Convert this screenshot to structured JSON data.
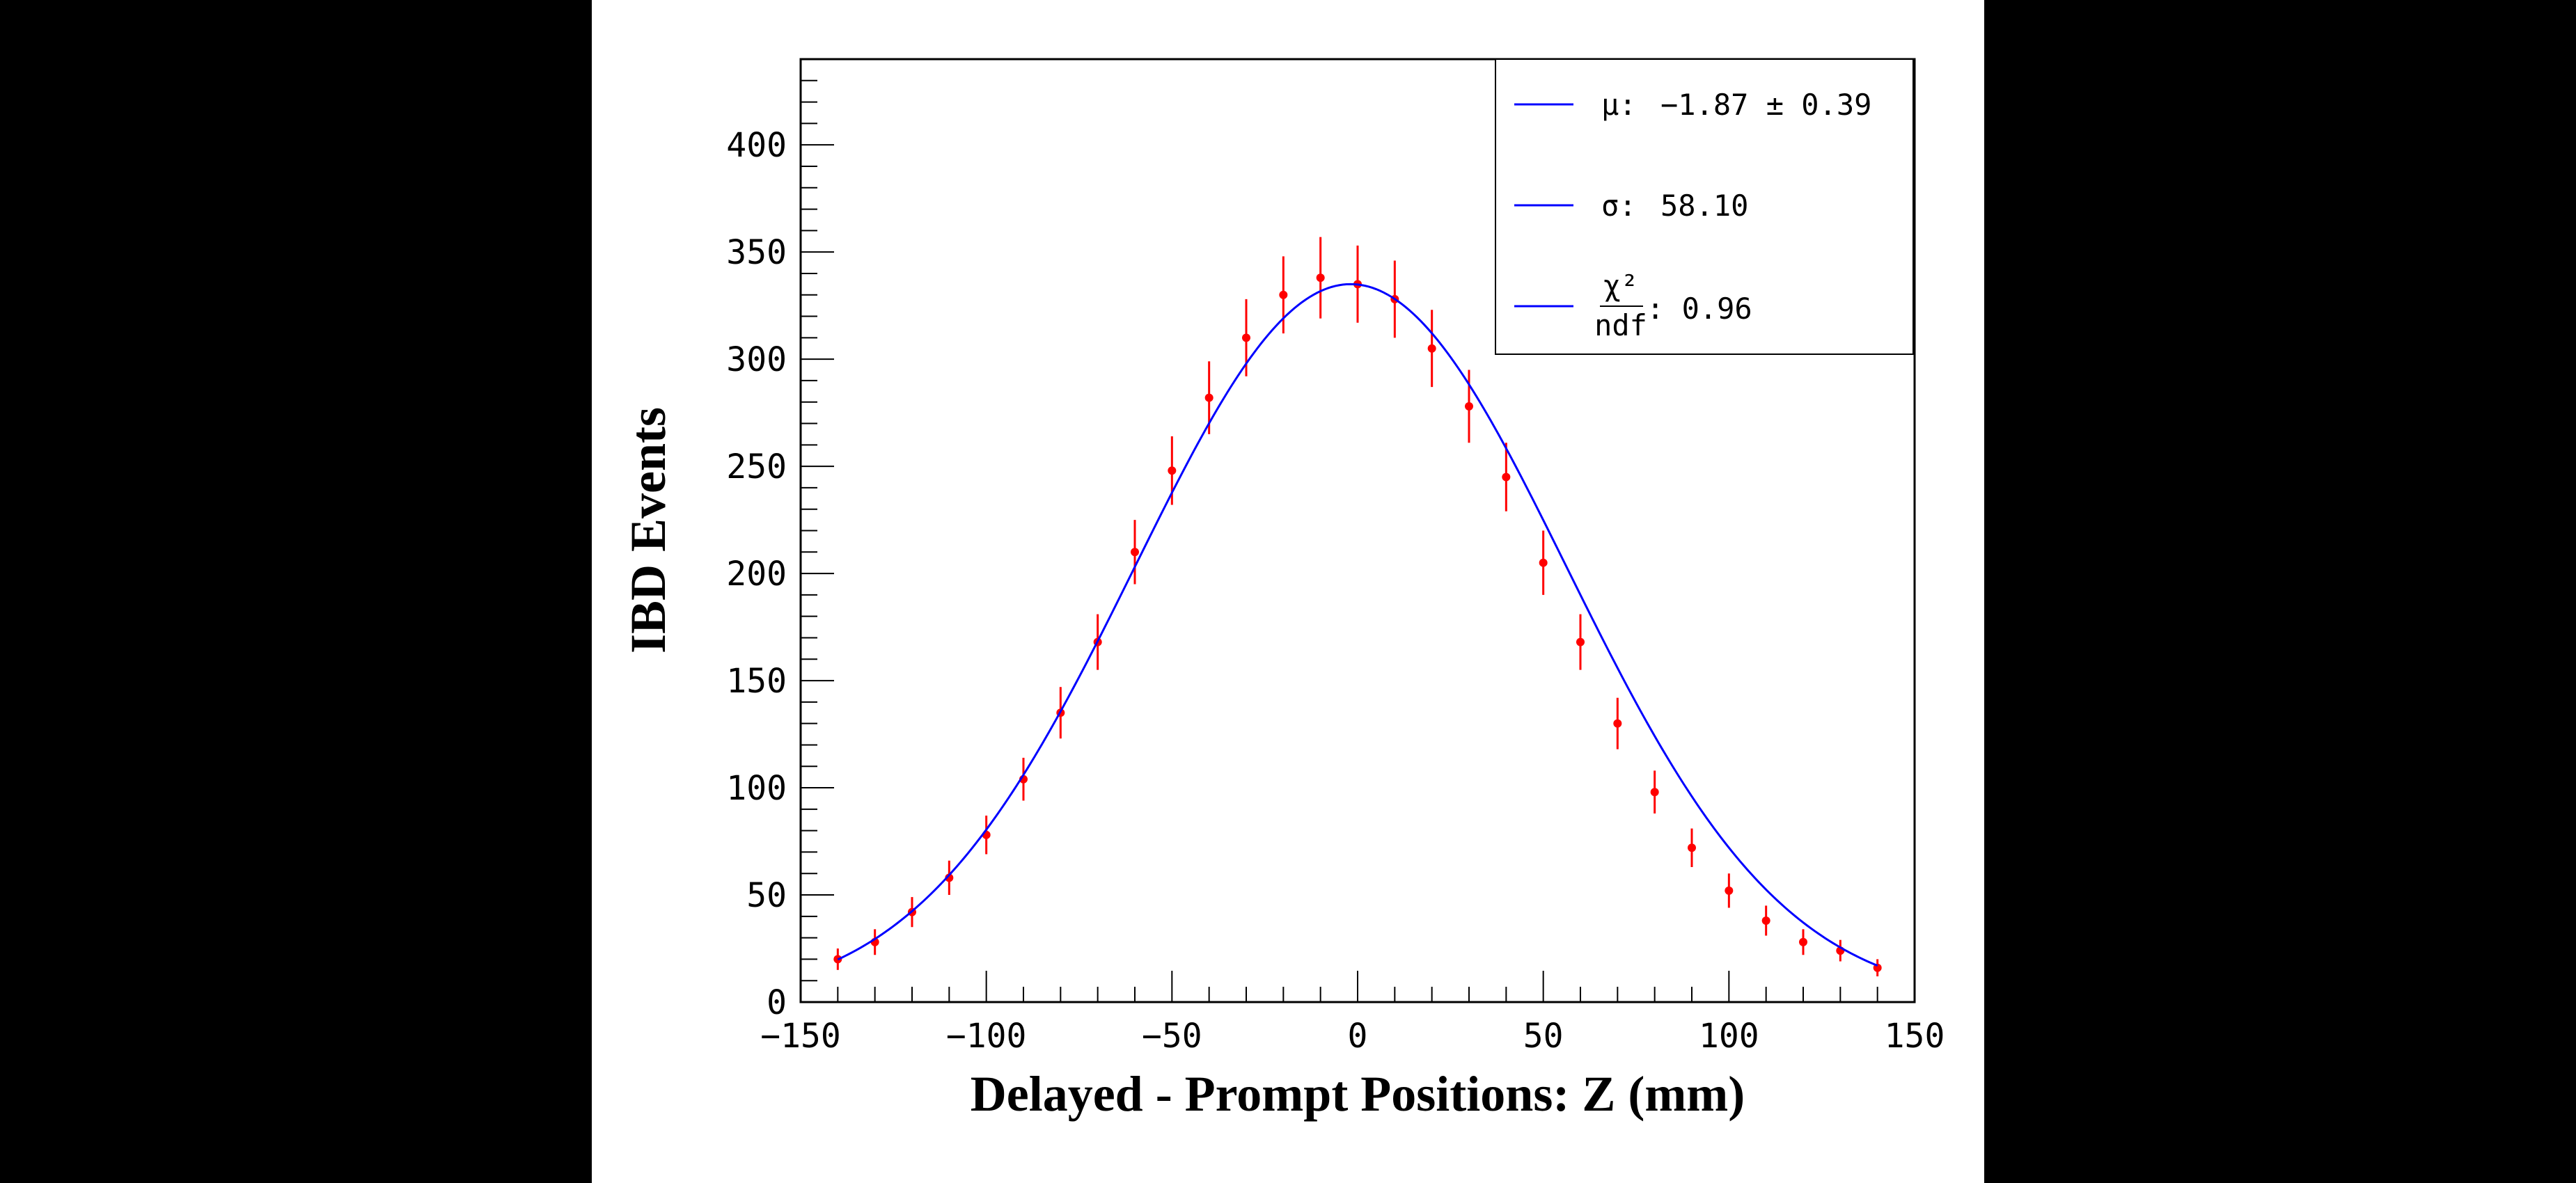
{
  "chart_data": {
    "type": "scatter",
    "xlabel": "Delayed - Prompt Positions: Z (mm)",
    "ylabel": "IBD Events",
    "xlim": [
      -150,
      150
    ],
    "ylim": [
      0,
      440
    ],
    "xticks": [
      "−150",
      "−100",
      "−50",
      "0",
      "50",
      "100",
      "150"
    ],
    "yticks": [
      "0",
      "50",
      "100",
      "150",
      "200",
      "250",
      "300",
      "350",
      "400"
    ],
    "grid": false,
    "legend_position": "top-right",
    "colors": {
      "data": "#ff0000",
      "fit": "#0000ff"
    },
    "legend": {
      "mu_label": "μ:",
      "mu_value": "−1.87 ± 0.39",
      "sigma_label": "σ:",
      "sigma_value": "58.10",
      "chi2_numerator": "χ²",
      "chi2_denominator": "ndf",
      "chi2_value": ": 0.96"
    },
    "fit": {
      "function": "gaussian",
      "mu": -1.87,
      "sigma": 58.1,
      "amplitude": 335,
      "x_range": [
        -140,
        140
      ]
    },
    "series": [
      {
        "name": "data",
        "x": [
          -140,
          -130,
          -120,
          -110,
          -100,
          -90,
          -80,
          -70,
          -60,
          -50,
          -40,
          -30,
          -20,
          -10,
          0,
          10,
          20,
          30,
          40,
          50,
          60,
          70,
          80,
          90,
          100,
          110,
          120,
          130,
          140
        ],
        "y": [
          20,
          28,
          42,
          58,
          78,
          104,
          135,
          168,
          210,
          248,
          282,
          310,
          330,
          338,
          335,
          328,
          305,
          278,
          245,
          205,
          168,
          130,
          98,
          72,
          52,
          38,
          28,
          24,
          16
        ],
        "yerr": [
          5,
          6,
          7,
          8,
          9,
          10,
          12,
          13,
          15,
          16,
          17,
          18,
          18,
          19,
          18,
          18,
          18,
          17,
          16,
          15,
          13,
          12,
          10,
          9,
          8,
          7,
          6,
          5,
          4
        ]
      }
    ]
  }
}
